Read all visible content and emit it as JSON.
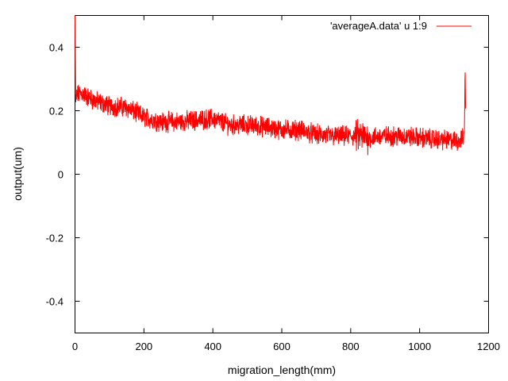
{
  "chart_data": {
    "type": "line",
    "title": "",
    "xlabel": "migration_length(mm)",
    "ylabel": "output(um)",
    "xlim": [
      0,
      1200
    ],
    "ylim": [
      -0.5,
      0.5
    ],
    "xticks": [
      0,
      200,
      400,
      600,
      800,
      1000,
      1200
    ],
    "yticks": [
      -0.4,
      -0.2,
      0,
      0.2,
      0.4
    ],
    "ytick_labels": [
      "-0.4",
      "-0.2",
      "0",
      "0.2",
      "0.4"
    ],
    "grid": false,
    "legend_position": "top-right",
    "series": [
      {
        "name": "'averageA.data' u 1:9",
        "color": "#ff0000",
        "trend": [
          [
            0,
            0.5
          ],
          [
            2,
            0.22
          ],
          [
            5,
            0.25
          ],
          [
            20,
            0.255
          ],
          [
            50,
            0.235
          ],
          [
            100,
            0.215
          ],
          [
            150,
            0.21
          ],
          [
            200,
            0.18
          ],
          [
            250,
            0.165
          ],
          [
            300,
            0.165
          ],
          [
            350,
            0.17
          ],
          [
            400,
            0.175
          ],
          [
            450,
            0.155
          ],
          [
            500,
            0.155
          ],
          [
            550,
            0.15
          ],
          [
            600,
            0.14
          ],
          [
            650,
            0.14
          ],
          [
            700,
            0.125
          ],
          [
            750,
            0.12
          ],
          [
            800,
            0.12
          ],
          [
            830,
            0.12
          ],
          [
            850,
            0.115
          ],
          [
            900,
            0.12
          ],
          [
            950,
            0.12
          ],
          [
            1000,
            0.115
          ],
          [
            1050,
            0.11
          ],
          [
            1100,
            0.105
          ],
          [
            1125,
            0.11
          ],
          [
            1130,
            0.14
          ],
          [
            1132,
            0.34
          ],
          [
            1134,
            0.15
          ]
        ],
        "noise_amplitude": 0.025
      }
    ]
  }
}
